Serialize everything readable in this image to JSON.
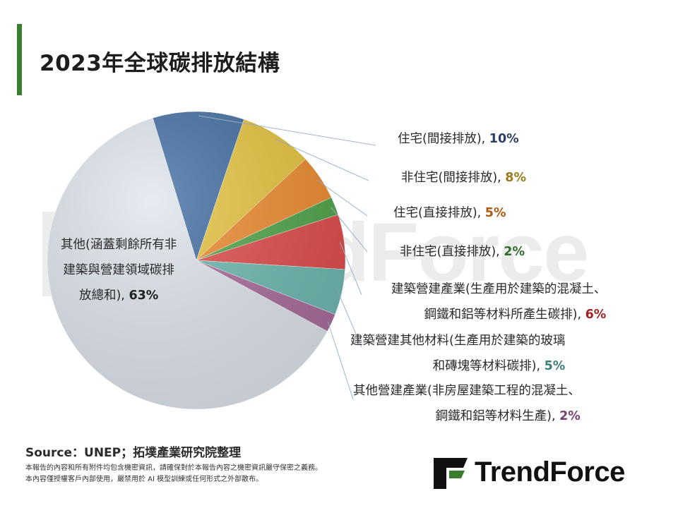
{
  "title": "2023年全球碳排放結構",
  "source": "Source：UNEP；拓墣產業研究院整理",
  "disclaimer": [
    "本報告的內容和所有附件均包含機密資訊，請確保對於本報告內容之機密資訊嚴守保密之義務。",
    "本內容僅授權客戶內部使用，嚴禁用於 AI 模型訓練或任何形式之外部散布。"
  ],
  "logo_text": "TrendForce",
  "watermark_text": "TrendForce",
  "colors": {
    "accent_bar": "#3a7d2c",
    "residential_indirect": "#3c6aa0",
    "nonresidential_indirect": "#e8c43a",
    "residential_direct": "#ef8a2a",
    "nonresidential_direct": "#4da447",
    "construction_steel_cement": "#e04a48",
    "construction_other_materials": "#6bb8b0",
    "other_construction": "#a86a9a",
    "other": "#dfe5ee"
  },
  "chart_data": {
    "type": "pie",
    "title": "2023年全球碳排放結構",
    "slices": [
      {
        "label_lines": [
          "住宅(間接排放), "
        ],
        "value": 10,
        "pct_text": "10%",
        "color": "#3c6aa0",
        "pct_color": "#2b3f66"
      },
      {
        "label_lines": [
          "非住宅(間接排放), "
        ],
        "value": 8,
        "pct_text": "8%",
        "color": "#e8c43a",
        "pct_color": "#9a7a1a"
      },
      {
        "label_lines": [
          "住宅(直接排放), "
        ],
        "value": 5,
        "pct_text": "5%",
        "color": "#ef8a2a",
        "pct_color": "#b05a14"
      },
      {
        "label_lines": [
          "非住宅(直接排放), "
        ],
        "value": 2,
        "pct_text": "2%",
        "color": "#4da447",
        "pct_color": "#2f6b2a"
      },
      {
        "label_lines": [
          "建築營建產業(生產用於建築的混凝土、",
          "鋼鐵和鋁等材料所產生碳排), "
        ],
        "value": 6,
        "pct_text": "6%",
        "color": "#e04a48",
        "pct_color": "#a02222"
      },
      {
        "label_lines": [
          "建築營建其他材料(生產用於建築的玻璃",
          "和磚塊等材料碳排), "
        ],
        "value": 5,
        "pct_text": "5%",
        "color": "#6bb8b0",
        "pct_color": "#3f7f7a"
      },
      {
        "label_lines": [
          "其他營建產業(非房屋建築工程的混凝土、",
          "鋼鐵和鋁等材料生產), "
        ],
        "value": 2,
        "pct_text": "2%",
        "color": "#a86a9a",
        "pct_color": "#7a3f6e"
      },
      {
        "label_lines": [
          "其他(涵蓋剩餘所有非",
          "建築與營建領域碳排",
          "放總和), "
        ],
        "value": 63,
        "pct_text": "63%",
        "color": "#dfe5ee",
        "pct_color": "#222222"
      }
    ]
  }
}
